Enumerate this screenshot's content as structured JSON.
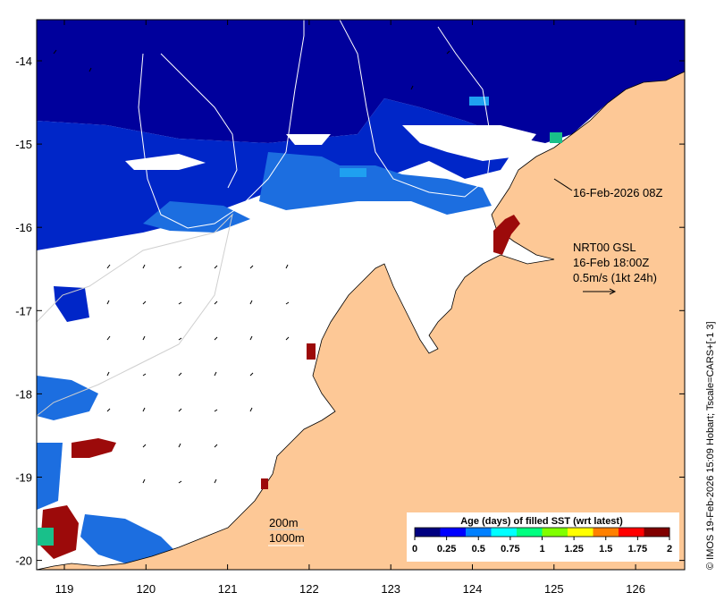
{
  "map": {
    "x_ticks": [
      "119",
      "120",
      "121",
      "122",
      "123",
      "124",
      "125",
      "126"
    ],
    "y_ticks": [
      "-14",
      "-15",
      "-16",
      "-17",
      "-18",
      "-19",
      "-20"
    ],
    "colors": {
      "land": "#fdc896",
      "no_data": "#ffffff",
      "sst_age_0": "#00009c",
      "sst_age_0_25": "#0026c8",
      "sst_age_0_5": "#1c6ee0",
      "sst_age_0_75": "#1fa0f0",
      "sst_age_1": "#19c08a",
      "sst_age_2": "#9c0a0a"
    }
  },
  "annotations": {
    "timestamp_label": "16-Feb-2026 08Z",
    "model_name": "NRT00 GSL",
    "model_time": "16-Feb 18:00Z",
    "vector_scale": "0.5m/s (1kt 24h)",
    "contour_200": "200m",
    "contour_1000": "1000m"
  },
  "colorbar": {
    "title": "Age (days) of filled SST (wrt latest)",
    "ticks": [
      "0",
      "0.25",
      "0.5",
      "0.75",
      "1",
      "1.25",
      "1.5",
      "1.75",
      "2"
    ],
    "colors": [
      "#000080",
      "#0000ff",
      "#0080ff",
      "#00ffff",
      "#00ff80",
      "#80ff00",
      "#ffff00",
      "#ff8000",
      "#ff0000",
      "#800000"
    ]
  },
  "credit": "© IMOS 19-Feb-2026 15:09 Hobart; Tscale=CARS+[-1 3]"
}
